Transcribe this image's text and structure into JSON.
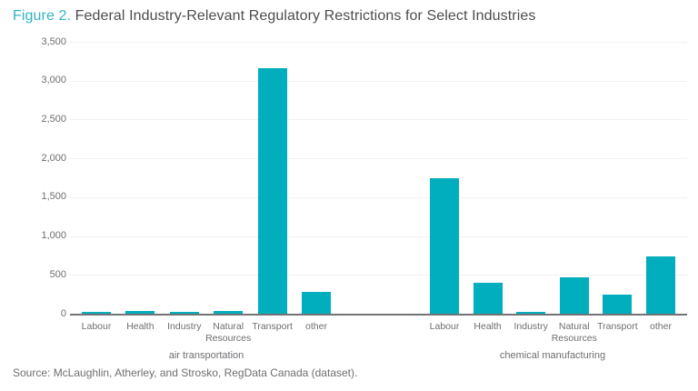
{
  "title": {
    "figure_label": "Figure 2.",
    "text": " Federal Industry-Relevant Regulatory Restrictions for Select Industries"
  },
  "source_note": "Source: McLaughlin, Atherley, and Strosko, RegData Canada (dataset).",
  "colors": {
    "bar_teal": "#00aebd",
    "figure_accent": "#2fb4c4",
    "title_text": "#4d4d4f",
    "axis_text": "#6d6e71",
    "gridline": "#f3f0f1",
    "axis_line": "#727376"
  },
  "chart_data": {
    "type": "bar",
    "title": "Figure 2. Federal Industry-Relevant Regulatory Restrictions for Select Industries",
    "xlabel": "",
    "ylabel": "",
    "ylim": [
      0,
      3500
    ],
    "ytick_step": 500,
    "yticks": [
      "0",
      "500",
      "1,000",
      "1,500",
      "2,000",
      "2,500",
      "3,000",
      "3,500"
    ],
    "grid": true,
    "legend": false,
    "bar_color": "#00aebd",
    "groups": [
      {
        "label": "air transportation",
        "categories": [
          "Labour",
          "Health",
          "Industry",
          "Natural Resources",
          "Transport",
          "other"
        ],
        "values": [
          20,
          35,
          20,
          35,
          3160,
          280
        ]
      },
      {
        "label": "chemical manufacturing",
        "categories": [
          "Labour",
          "Health",
          "Industry",
          "Natural Resources",
          "Transport",
          "other"
        ],
        "values": [
          1745,
          400,
          15,
          470,
          240,
          740
        ]
      }
    ]
  }
}
